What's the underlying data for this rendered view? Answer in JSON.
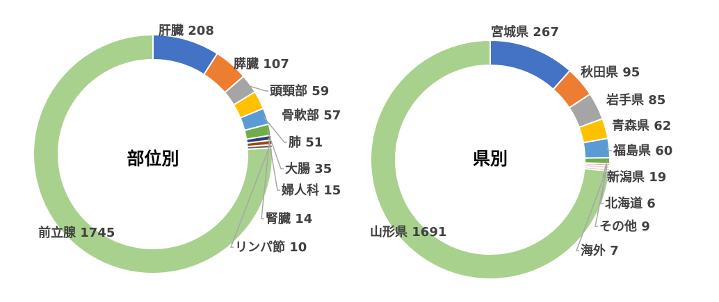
{
  "chart_data": [
    {
      "type": "donut",
      "title": "部位別",
      "categories": [
        "肝臓",
        "膵臓",
        "頭頸部",
        "骨軟部",
        "肺",
        "大腸",
        "婦人科",
        "腎臓",
        "リンパ節",
        "前立腺"
      ],
      "values": [
        208,
        107,
        59,
        57,
        51,
        35,
        15,
        14,
        10,
        1745
      ],
      "labels": [
        "肝臓 208",
        "膵臓 107",
        "頭頸部 59",
        "骨軟部 57",
        "肺 51",
        "大腸 35",
        "婦人科 15",
        "腎臓 14",
        "リンパ節 10",
        "前立腺 1745"
      ],
      "colors": [
        "#4472C4",
        "#ED7D31",
        "#A5A5A5",
        "#FFC000",
        "#5B9BD5",
        "#70AD47",
        "#264478",
        "#9E480E",
        "#636363",
        "#A9D18E"
      ]
    },
    {
      "type": "donut",
      "title": "県別",
      "categories": [
        "宮城県",
        "秋田県",
        "岩手県",
        "青森県",
        "福島県",
        "新潟県",
        "北海道",
        "その他",
        "海外",
        "山形県"
      ],
      "values": [
        267,
        95,
        85,
        62,
        60,
        19,
        6,
        9,
        7,
        1691
      ],
      "labels": [
        "宮城県 267",
        "秋田県 95",
        "岩手県 85",
        "青森県 62",
        "福島県 60",
        "新潟県 19",
        "北海道 6",
        "その他 9",
        "海外 7",
        "山形県 1691"
      ],
      "colors": [
        "#4472C4",
        "#ED7D31",
        "#A5A5A5",
        "#FFC000",
        "#5B9BD5",
        "#70AD47",
        "#C00000",
        "#D9D9D9",
        "#F4B183",
        "#A9D18E"
      ]
    }
  ]
}
